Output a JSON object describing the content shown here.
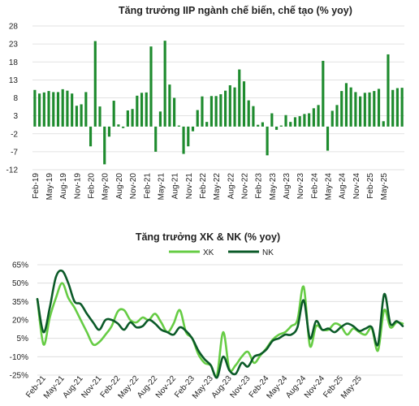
{
  "chart_data": [
    {
      "type": "bar",
      "title": "Tăng trưởng IIP ngành chế biến, chế tạo (% yoy)",
      "ylim": [
        -12,
        28
      ],
      "yticks": [
        -12,
        -7,
        -2,
        3,
        8,
        13,
        18,
        23,
        28
      ],
      "grid": true,
      "color": "#1e8b2e",
      "x_tick_labels": [
        "Feb-19",
        "May-19",
        "Aug-19",
        "Nov-19",
        "Feb-20",
        "May-20",
        "Aug-20",
        "Nov-20",
        "Feb-21",
        "May-21",
        "Aug-21",
        "Nov-21",
        "Feb-22",
        "May-22",
        "Aug-22",
        "Nov-22",
        "Feb-23",
        "May-23",
        "Aug-23",
        "Nov-23",
        "Feb-24",
        "May-24",
        "Aug-24",
        "Nov-24",
        "Feb-25",
        "May-25"
      ],
      "values": [
        10.2,
        9.2,
        9.5,
        9.9,
        9.6,
        9.6,
        10.4,
        10.0,
        9.2,
        5.8,
        6.2,
        9.6,
        -5.5,
        23.8,
        5.6,
        -10.5,
        -2.8,
        7.2,
        0.6,
        -0.4,
        4.5,
        4.9,
        8.6,
        9.4,
        9.5,
        22.3,
        -7.0,
        4.2,
        23.9,
        11.7,
        8.0,
        0.3,
        -7.6,
        -5.5,
        -1.3,
        4.6,
        8.4,
        1.3,
        8.5,
        8.5,
        9.0,
        10.0,
        11.5,
        10.9,
        15.9,
        12.6,
        7.3,
        5.7,
        0.5,
        1.2,
        -8.0,
        3.7,
        -0.9,
        0.3,
        3.2,
        1.3,
        2.6,
        2.9,
        3.5,
        3.7,
        5.1,
        6.0,
        18.3,
        -6.7,
        4.4,
        6.0,
        9.9,
        12.1,
        10.9,
        9.6,
        8.4,
        9.4,
        9.5,
        9.9,
        10.5,
        1.5,
        20.1,
        10.2,
        10.7,
        10.8
      ]
    },
    {
      "type": "line",
      "title": "Tăng trưởng XK & NK (% yoy)",
      "ylim": [
        -25,
        65
      ],
      "yticks": [
        "65%",
        "50%",
        "35%",
        "20%",
        "5%",
        "-10%",
        "-25%"
      ],
      "grid": true,
      "legend_position": "top",
      "x_tick_labels": [
        "Feb-21",
        "May-21",
        "Aug-21",
        "Nov-21",
        "Feb-22",
        "May-22",
        "Aug-22",
        "Nov-22",
        "Feb-23",
        "May-23",
        "Aug-23",
        "Nov-23",
        "Feb-24",
        "May-24",
        "Aug-24",
        "Nov-24",
        "Feb-25",
        "May-25"
      ],
      "series": [
        {
          "name": "XK",
          "color": "#66cc44",
          "values": [
            37,
            0,
            22,
            38,
            50,
            38,
            30,
            20,
            10,
            0,
            2,
            8,
            15,
            27,
            28,
            20,
            18,
            22,
            20,
            25,
            18,
            10,
            17,
            28,
            10,
            5,
            -8,
            -15,
            -17,
            -25,
            10,
            -20,
            -17,
            -10,
            -6,
            -15,
            -9,
            -3,
            4,
            8,
            10,
            15,
            20,
            47,
            -1,
            15,
            12,
            12,
            17,
            15,
            8,
            13,
            10,
            8,
            13,
            -5,
            28,
            14,
            18,
            17
          ]
        },
        {
          "name": "NK",
          "color": "#0b5a28",
          "values": [
            37,
            10,
            30,
            55,
            60,
            50,
            35,
            33,
            25,
            18,
            12,
            20,
            20,
            17,
            12,
            18,
            14,
            15,
            20,
            17,
            12,
            10,
            8,
            14,
            11,
            5,
            -5,
            -12,
            -17,
            -27,
            -10,
            -21,
            -24,
            -15,
            -18,
            -10,
            -8,
            -4,
            3,
            5,
            8,
            8,
            14,
            36,
            5,
            19,
            12,
            13,
            10,
            14,
            17,
            15,
            11,
            13,
            14,
            0,
            41,
            17,
            19,
            15
          ]
        }
      ]
    }
  ]
}
